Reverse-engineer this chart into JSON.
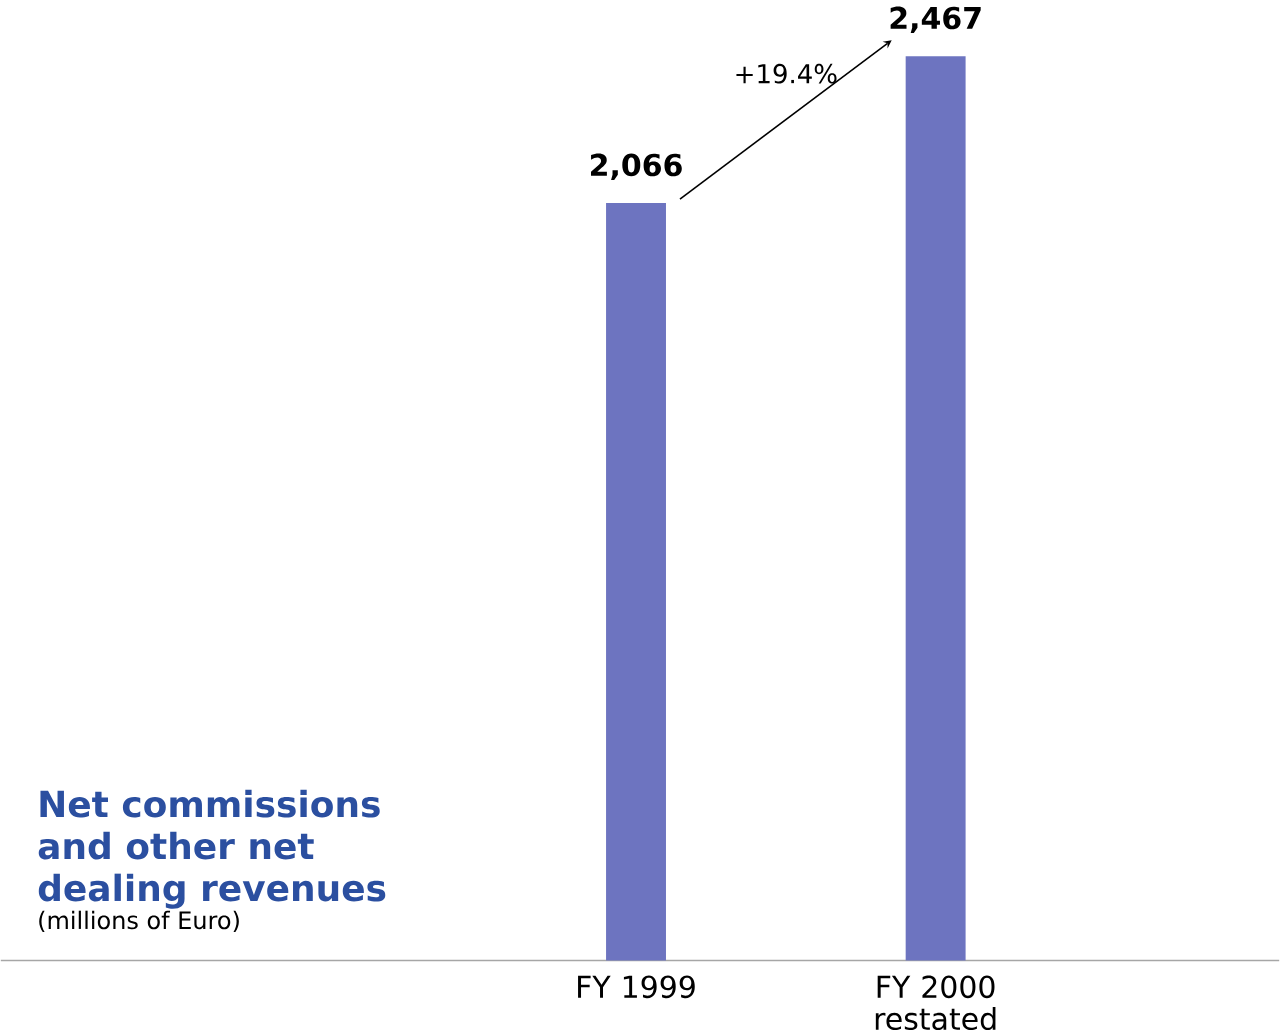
{
  "chart_data": {
    "type": "bar",
    "title": "Net commissions and other net dealing revenues",
    "subtitle": "(millions of Euro)",
    "categories": [
      "FY 1999",
      "FY 2000 restated"
    ],
    "values": [
      2066,
      2467
    ],
    "value_labels": [
      "2,066",
      "2,467"
    ],
    "color": "#6d74c0",
    "annotations": [
      "+19.4%"
    ]
  }
}
